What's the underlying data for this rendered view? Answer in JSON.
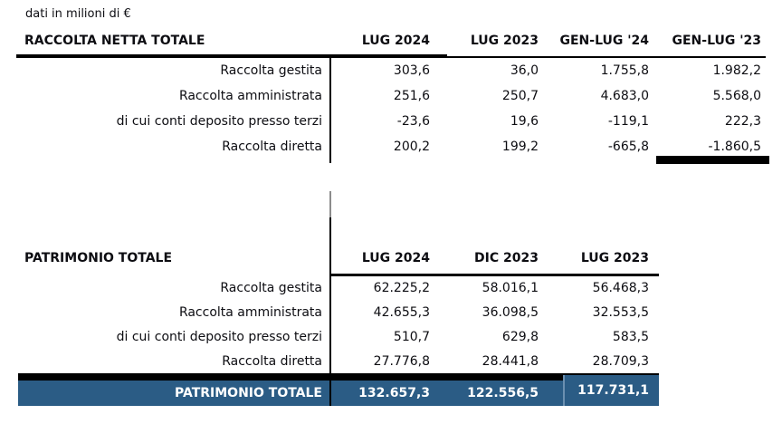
{
  "note": "dati in milioni di €",
  "colors": {
    "accent_blue": "#2B5C85",
    "footer_text": "#FFFFFF",
    "rule_black": "#000000",
    "rule_gray": "#8C8C8C"
  },
  "table1": {
    "title": "RACCOLTA NETTA TOTALE",
    "columns": [
      "LUG 2024",
      "LUG 2023",
      "GEN-LUG '24",
      "GEN-LUG '23"
    ],
    "rows": [
      {
        "label": "Raccolta gestita",
        "values": [
          "303,6",
          "36,0",
          "1.755,8",
          "1.982,2"
        ]
      },
      {
        "label": "Raccolta amministrata",
        "values": [
          "251,6",
          "250,7",
          "4.683,0",
          "5.568,0"
        ]
      },
      {
        "label": "di cui conti deposito presso terzi",
        "values": [
          "-23,6",
          "19,6",
          "-119,1",
          "222,3"
        ]
      },
      {
        "label": "Raccolta diretta",
        "values": [
          "200,2",
          "199,2",
          "-665,8",
          "-1.860,5"
        ]
      }
    ]
  },
  "table2": {
    "title": "PATRIMONIO TOTALE",
    "columns": [
      "LUG 2024",
      "DIC 2023",
      "LUG 2023"
    ],
    "rows": [
      {
        "label": "Raccolta gestita",
        "values": [
          "62.225,2",
          "58.016,1",
          "56.468,3"
        ]
      },
      {
        "label": "Raccolta amministrata",
        "values": [
          "42.655,3",
          "36.098,5",
          "32.553,5"
        ]
      },
      {
        "label": "di cui conti deposito presso terzi",
        "values": [
          "510,7",
          "629,8",
          "583,5"
        ]
      },
      {
        "label": "Raccolta diretta",
        "values": [
          "27.776,8",
          "28.441,8",
          "28.709,3"
        ]
      }
    ],
    "total": {
      "label": "PATRIMONIO TOTALE",
      "values": [
        "132.657,3",
        "122.556,5",
        "117.731,1"
      ]
    }
  }
}
